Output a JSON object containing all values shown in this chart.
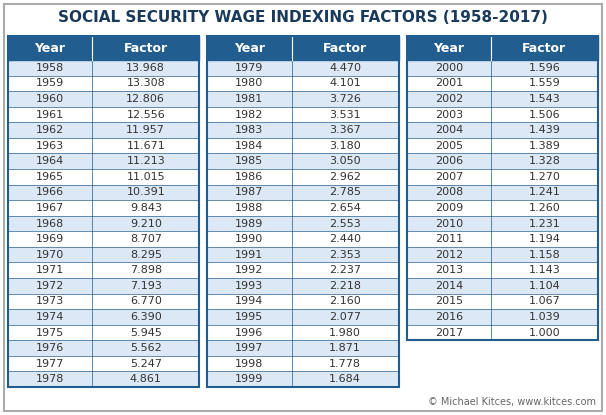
{
  "title": "SOCIAL SECURITY WAGE INDEXING FACTORS (1958-2017)",
  "title_color": "#1a3a5c",
  "header_bg": "#215d8e",
  "header_text_color": "#ffffff",
  "col1_data": [
    [
      1958,
      13.968
    ],
    [
      1959,
      13.308
    ],
    [
      1960,
      12.806
    ],
    [
      1961,
      12.556
    ],
    [
      1962,
      11.957
    ],
    [
      1963,
      11.671
    ],
    [
      1964,
      11.213
    ],
    [
      1965,
      11.015
    ],
    [
      1966,
      10.391
    ],
    [
      1967,
      9.843
    ],
    [
      1968,
      9.21
    ],
    [
      1969,
      8.707
    ],
    [
      1970,
      8.295
    ],
    [
      1971,
      7.898
    ],
    [
      1972,
      7.193
    ],
    [
      1973,
      6.77
    ],
    [
      1974,
      6.39
    ],
    [
      1975,
      5.945
    ],
    [
      1976,
      5.562
    ],
    [
      1977,
      5.247
    ],
    [
      1978,
      4.861
    ]
  ],
  "col2_data": [
    [
      1979,
      4.47
    ],
    [
      1980,
      4.101
    ],
    [
      1981,
      3.726
    ],
    [
      1982,
      3.531
    ],
    [
      1983,
      3.367
    ],
    [
      1984,
      3.18
    ],
    [
      1985,
      3.05
    ],
    [
      1986,
      2.962
    ],
    [
      1987,
      2.785
    ],
    [
      1988,
      2.654
    ],
    [
      1989,
      2.553
    ],
    [
      1990,
      2.44
    ],
    [
      1991,
      2.353
    ],
    [
      1992,
      2.237
    ],
    [
      1993,
      2.218
    ],
    [
      1994,
      2.16
    ],
    [
      1995,
      2.077
    ],
    [
      1996,
      1.98
    ],
    [
      1997,
      1.871
    ],
    [
      1998,
      1.778
    ],
    [
      1999,
      1.684
    ]
  ],
  "col3_data": [
    [
      2000,
      1.596
    ],
    [
      2001,
      1.559
    ],
    [
      2002,
      1.543
    ],
    [
      2003,
      1.506
    ],
    [
      2004,
      1.439
    ],
    [
      2005,
      1.389
    ],
    [
      2006,
      1.328
    ],
    [
      2007,
      1.27
    ],
    [
      2008,
      1.241
    ],
    [
      2009,
      1.26
    ],
    [
      2010,
      1.231
    ],
    [
      2011,
      1.194
    ],
    [
      2012,
      1.158
    ],
    [
      2013,
      1.143
    ],
    [
      2014,
      1.104
    ],
    [
      2015,
      1.067
    ],
    [
      2016,
      1.039
    ],
    [
      2017,
      1.0
    ]
  ],
  "row_bg_even": "#dce8f5",
  "row_bg_odd": "#ffffff",
  "border_color": "#215d8e",
  "divider_color": "#215d8e",
  "text_color": "#333333",
  "footer_text": "© Michael Kitces, ",
  "footer_link": "www.kitces.com",
  "footer_color": "#666666",
  "footer_link_color": "#215d8e",
  "outer_border_color": "#aaaaaa",
  "background_color": "#ffffff",
  "title_fontsize": 11,
  "header_fontsize": 9,
  "data_fontsize": 8
}
